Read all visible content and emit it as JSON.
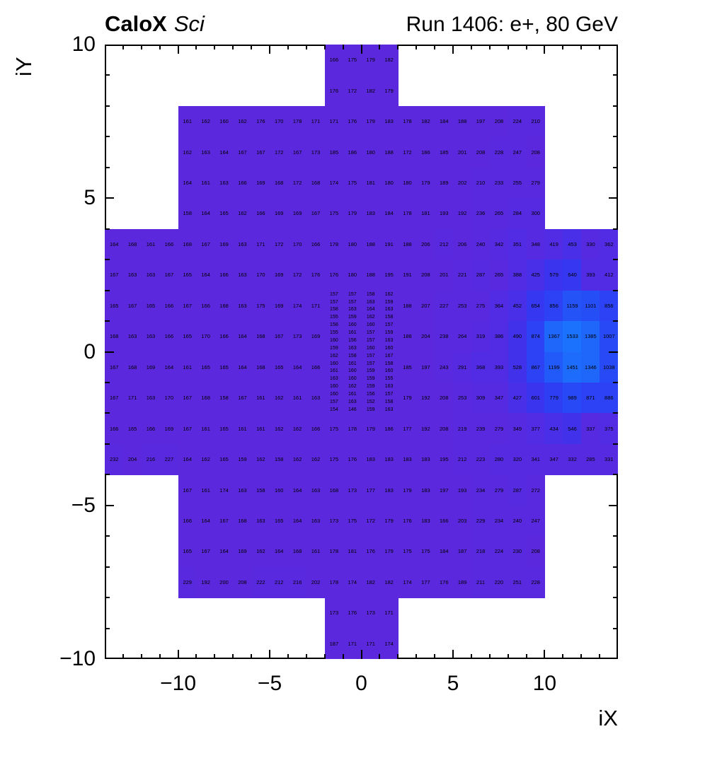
{
  "header": {
    "experiment": "CaloX",
    "detector": "Sci",
    "run_info": "Run 1406: e+, 80 GeV"
  },
  "axes": {
    "x_title": "iX",
    "y_title": "iY",
    "x_range": [
      -14,
      14
    ],
    "y_range": [
      -10,
      10
    ],
    "x_tick_values": [
      -10,
      -5,
      0,
      5,
      10
    ],
    "x_tick_labels": [
      "−10",
      "−5",
      "0",
      "5",
      "10"
    ],
    "y_tick_values": [
      10,
      5,
      0,
      -5,
      -10
    ],
    "y_tick_labels": [
      "10",
      "5",
      "0",
      "−5",
      "−10"
    ],
    "minor_tick_step": 1
  },
  "chart_data": {
    "type": "heatmap",
    "title": "Run 1406: e+, 80 GeV",
    "subtitle": "CaloX Sci energy map, cell contents shown as text",
    "xlabel": "iX",
    "ylabel": "iY",
    "x_range": [
      -14,
      14
    ],
    "y_range": [
      -10,
      10
    ],
    "z_range": [
      140,
      1540
    ],
    "contour_levels": 20,
    "palette_stops": [
      [
        140,
        "#5d27dc"
      ],
      [
        350,
        "#552be2"
      ],
      [
        490,
        "#4530e9"
      ],
      [
        630,
        "#3835f0"
      ],
      [
        770,
        "#2f3df2"
      ],
      [
        980,
        "#2946f5"
      ],
      [
        1190,
        "#2356f8"
      ],
      [
        1400,
        "#1e69fc"
      ],
      [
        1540,
        "#1a75fd"
      ]
    ],
    "coarse_rows": [
      {
        "iy": 9,
        "segments": [
          {
            "x": -2,
            "values": [
              166,
              175,
              179,
              182
            ]
          }
        ]
      },
      {
        "iy": 8,
        "segments": [
          {
            "x": -2,
            "values": [
              176,
              172,
              182,
              179
            ]
          }
        ]
      },
      {
        "iy": 7,
        "segments": [
          {
            "x": -10,
            "values": [
              161,
              162,
              160,
              162,
              176,
              170,
              178,
              171,
              171,
              176,
              179,
              183,
              178,
              182,
              184,
              188,
              197,
              208,
              224,
              210
            ]
          }
        ]
      },
      {
        "iy": 6,
        "segments": [
          {
            "x": -10,
            "values": [
              162,
              163,
              164,
              167,
              167,
              172,
              167,
              173,
              185,
              186,
              180,
              188,
              172,
              186,
              185,
              201,
              208,
              228,
              247,
              208
            ]
          }
        ]
      },
      {
        "iy": 5,
        "segments": [
          {
            "x": -10,
            "values": [
              164,
              161,
              163,
              166,
              169,
              168,
              172,
              168,
              174,
              175,
              181,
              180,
              180,
              179,
              189,
              202,
              210,
              233,
              255,
              279
            ]
          }
        ]
      },
      {
        "iy": 4,
        "segments": [
          {
            "x": -10,
            "values": [
              158,
              164,
              165,
              162,
              166,
              169,
              169,
              167,
              175,
              179,
              183,
              184,
              178,
              181,
              193,
              192,
              236,
              265,
              284,
              300
            ]
          }
        ]
      },
      {
        "iy": 3,
        "segments": [
          {
            "x": -14,
            "values": [
              164,
              168,
              161,
              166,
              168,
              167,
              169,
              163,
              171,
              172,
              170,
              166,
              178,
              180,
              188,
              191,
              188,
              206,
              212,
              206,
              240,
              342,
              351,
              348,
              419,
              453,
              330,
              362
            ]
          }
        ]
      },
      {
        "iy": 2,
        "segments": [
          {
            "x": -14,
            "values": [
              167,
              163,
              163,
              167,
              165,
              164,
              166,
              163,
              170,
              169,
              172,
              176,
              176,
              180,
              188,
              195,
              191,
              208,
              201,
              221,
              287,
              265,
              388,
              425,
              579,
              640,
              393,
              412
            ]
          }
        ]
      },
      {
        "iy": 1,
        "segments": [
          {
            "x": -14,
            "values": [
              165,
              167,
              165,
              166,
              167,
              166,
              168,
              163,
              175,
              169,
              174,
              171
            ]
          },
          {
            "x": 2,
            "values": [
              188,
              207,
              227,
              253,
              275,
              364,
              452,
              654,
              856,
              1159,
              1101,
              856
            ]
          }
        ]
      },
      {
        "iy": 0,
        "segments": [
          {
            "x": -14,
            "values": [
              168,
              163,
              163,
              166,
              165,
              170,
              166,
              164,
              168,
              167,
              173,
              169
            ]
          },
          {
            "x": 2,
            "values": [
              188,
              204,
              238,
              264,
              319,
              386,
              490,
              874,
              1367,
              1533,
              1385,
              1007
            ]
          }
        ]
      },
      {
        "iy": -1,
        "segments": [
          {
            "x": -14,
            "values": [
              167,
              168,
              169,
              164,
              161,
              165,
              165,
              164,
              168,
              165,
              164,
              166
            ]
          },
          {
            "x": 2,
            "values": [
              185,
              197,
              243,
              291,
              368,
              393,
              528,
              867,
              1199,
              1451,
              1346,
              1038
            ]
          }
        ]
      },
      {
        "iy": -2,
        "segments": [
          {
            "x": -14,
            "values": [
              167,
              171,
              163,
              170,
              167,
              168,
              158,
              167,
              161,
              162,
              161,
              163
            ]
          },
          {
            "x": 2,
            "values": [
              179,
              192,
              208,
              253,
              309,
              347,
              427,
              601,
              779,
              989,
              871,
              886
            ]
          }
        ]
      },
      {
        "iy": -3,
        "segments": [
          {
            "x": -14,
            "values": [
              166,
              165,
              166,
              169,
              167,
              161,
              165,
              161,
              161,
              162,
              162,
              166,
              175,
              178,
              179,
              186,
              177,
              192,
              208,
              219,
              239,
              279,
              349,
              377,
              434,
              546,
              337,
              375
            ]
          }
        ]
      },
      {
        "iy": -4,
        "segments": [
          {
            "x": -14,
            "values": [
              232,
              204,
              216,
              227,
              164,
              162,
              165,
              159,
              162,
              158,
              162,
              162,
              175,
              176,
              183,
              183,
              183,
              183,
              195,
              212,
              223,
              280,
              320,
              341,
              347,
              332,
              285,
              331
            ]
          }
        ]
      },
      {
        "iy": -5,
        "segments": [
          {
            "x": -10,
            "values": [
              167,
              161,
              174,
              163,
              158,
              160,
              164,
              163,
              168,
              173,
              177,
              183,
              179,
              183,
              197,
              193,
              234,
              279,
              287,
              272
            ]
          }
        ]
      },
      {
        "iy": -6,
        "segments": [
          {
            "x": -10,
            "values": [
              166,
              164,
              167,
              168,
              163,
              165,
              164,
              163,
              173,
              175,
              172,
              179,
              176,
              183,
              166,
              203,
              229,
              234,
              240,
              247
            ]
          }
        ]
      },
      {
        "iy": -7,
        "segments": [
          {
            "x": -10,
            "values": [
              165,
              167,
              164,
              169,
              162,
              164,
              168,
              161,
              178,
              181,
              176,
              179,
              175,
              175,
              184,
              187,
              218,
              224,
              230,
              208
            ]
          }
        ]
      },
      {
        "iy": -8,
        "segments": [
          {
            "x": -10,
            "values": [
              229,
              192,
              200,
              208,
              222,
              212,
              216,
              202,
              178,
              174,
              182,
              182,
              174,
              177,
              176,
              189,
              211,
              220,
              251,
              228
            ]
          }
        ]
      },
      {
        "iy": -9,
        "segments": [
          {
            "x": -2,
            "values": [
              173,
              176,
              173,
              171
            ]
          }
        ]
      },
      {
        "iy": -10,
        "segments": [
          {
            "x": -2,
            "values": [
              187,
              171,
              171,
              174
            ]
          }
        ]
      }
    ],
    "fine_grid": {
      "x_start": -2,
      "y_top": 2,
      "cell_w": 1,
      "cell_h": 0.25,
      "rows": [
        [
          157,
          157,
          158,
          162
        ],
        [
          157,
          157,
          163,
          159
        ],
        [
          158,
          163,
          164,
          163
        ],
        [
          155,
          159,
          162,
          158
        ],
        [
          158,
          160,
          160,
          157
        ],
        [
          155,
          161,
          157,
          159
        ],
        [
          160,
          156,
          157,
          163
        ],
        [
          159,
          163,
          160,
          160
        ],
        [
          162,
          158,
          157,
          167
        ],
        [
          160,
          161,
          157,
          158
        ],
        [
          161,
          160,
          159,
          160
        ],
        [
          163,
          160,
          159,
          155
        ],
        [
          160,
          162,
          159,
          163
        ],
        [
          160,
          161,
          156,
          157
        ],
        [
          157,
          163,
          152,
          158
        ],
        [
          154,
          146,
          159,
          163
        ]
      ]
    }
  }
}
